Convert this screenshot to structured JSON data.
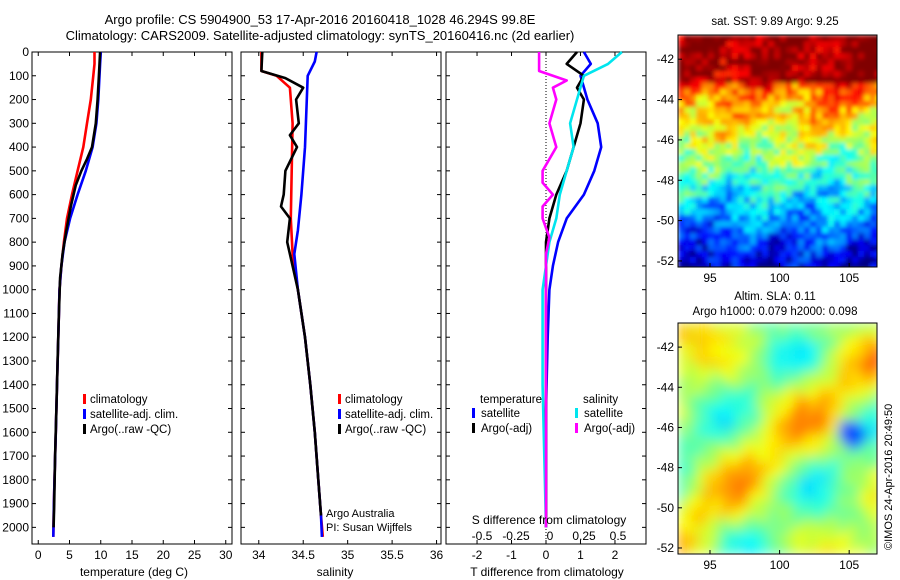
{
  "title_line1": "Argo profile: CS 5904900_53 17-Apr-2016 20160418_1028 46.294S 99.8E",
  "title_line2": "Climatology: CARS2009. Satellite-adjusted climatology: synTS_20160416.nc (2d earlier)",
  "sst_title": "sat. SST: 9.89 Argo: 9.25",
  "sla_title_line1": "Altim. SLA: 0.11",
  "sla_title_line2": "Argo h1000: 0.079 h2000: 0.098",
  "credit_side": "©IMOS 24-Apr-2016 20:49:50",
  "attribution_line1": "Argo Australia",
  "attribution_line2": "PI: Susan Wijffels",
  "colors": {
    "climatology": "#ff0000",
    "satellite": "#0000ff",
    "argo": "#000000",
    "sat_salinity": "#00e5ee",
    "argo_salinity": "#ff00ff"
  },
  "chart_data": [
    {
      "type": "line",
      "panel": "temperature",
      "xlabel": "temperature (deg C)",
      "xlim": [
        -1,
        31
      ],
      "ylim": [
        2070,
        0
      ],
      "xticks": [
        "0",
        "5",
        "10",
        "15",
        "20",
        "25",
        "30"
      ],
      "yticks": [
        "0",
        "100",
        "200",
        "300",
        "400",
        "500",
        "600",
        "700",
        "800",
        "900",
        "1000",
        "1100",
        "1200",
        "1300",
        "1400",
        "1500",
        "1600",
        "1700",
        "1800",
        "1900",
        "2000"
      ],
      "legend_position": "lower-center",
      "series": [
        {
          "name": "climatology",
          "color": "#ff0000",
          "points": [
            [
              9.0,
              0
            ],
            [
              9.0,
              50
            ],
            [
              8.8,
              100
            ],
            [
              8.4,
              200
            ],
            [
              7.8,
              300
            ],
            [
              7.2,
              400
            ],
            [
              6.3,
              500
            ],
            [
              5.4,
              600
            ],
            [
              4.6,
              700
            ],
            [
              4.1,
              800
            ],
            [
              3.7,
              900
            ],
            [
              3.4,
              1000
            ],
            [
              3.2,
              1200
            ],
            [
              3.0,
              1400
            ],
            [
              2.8,
              1600
            ],
            [
              2.6,
              1800
            ],
            [
              2.5,
              1900
            ],
            [
              2.4,
              2040
            ]
          ]
        },
        {
          "name": "satellite-adj. clim.",
          "color": "#0000ff",
          "points": [
            [
              10.0,
              0
            ],
            [
              9.9,
              50
            ],
            [
              9.8,
              100
            ],
            [
              9.6,
              200
            ],
            [
              9.3,
              300
            ],
            [
              8.7,
              400
            ],
            [
              7.6,
              500
            ],
            [
              6.3,
              600
            ],
            [
              5.1,
              700
            ],
            [
              4.2,
              800
            ],
            [
              3.7,
              900
            ],
            [
              3.4,
              1000
            ],
            [
              3.2,
              1200
            ],
            [
              3.0,
              1400
            ],
            [
              2.8,
              1600
            ],
            [
              2.6,
              1800
            ],
            [
              2.5,
              1900
            ],
            [
              2.4,
              2040
            ]
          ]
        },
        {
          "name": "Argo(..raw -QC)",
          "color": "#000000",
          "points": [
            [
              9.9,
              0
            ],
            [
              9.8,
              50
            ],
            [
              9.7,
              100
            ],
            [
              9.5,
              200
            ],
            [
              9.2,
              300
            ],
            [
              8.6,
              400
            ],
            [
              7.8,
              450
            ],
            [
              6.9,
              500
            ],
            [
              6.0,
              560
            ],
            [
              5.2,
              650
            ],
            [
              4.5,
              750
            ],
            [
              3.9,
              850
            ],
            [
              3.5,
              950
            ],
            [
              3.3,
              1100
            ],
            [
              3.1,
              1300
            ],
            [
              2.9,
              1500
            ],
            [
              2.7,
              1700
            ],
            [
              2.55,
              1900
            ],
            [
              2.45,
              2000
            ]
          ]
        }
      ]
    },
    {
      "type": "line",
      "panel": "salinity",
      "xlabel": "salinity",
      "xlim": [
        33.8,
        36.05
      ],
      "ylim": [
        2070,
        0
      ],
      "xticks": [
        "34",
        "34.5",
        "35",
        "35.5",
        "36"
      ],
      "legend_position": "lower-center",
      "series": [
        {
          "name": "climatology",
          "color": "#ff0000",
          "points": [
            [
              34.03,
              0
            ],
            [
              34.03,
              80
            ],
            [
              34.2,
              100
            ],
            [
              34.35,
              150
            ],
            [
              34.38,
              300
            ],
            [
              34.37,
              500
            ],
            [
              34.36,
              700
            ],
            [
              34.38,
              850
            ],
            [
              34.44,
              1000
            ],
            [
              34.52,
              1200
            ],
            [
              34.58,
              1400
            ],
            [
              34.63,
              1600
            ],
            [
              34.67,
              1800
            ],
            [
              34.7,
              1950
            ],
            [
              34.72,
              2040
            ]
          ]
        },
        {
          "name": "satellite-adj. clim.",
          "color": "#0000ff",
          "points": [
            [
              34.65,
              0
            ],
            [
              34.63,
              40
            ],
            [
              34.55,
              100
            ],
            [
              34.54,
              200
            ],
            [
              34.52,
              400
            ],
            [
              34.48,
              600
            ],
            [
              34.44,
              750
            ],
            [
              34.4,
              850
            ],
            [
              34.44,
              1000
            ],
            [
              34.52,
              1200
            ],
            [
              34.58,
              1400
            ],
            [
              34.63,
              1600
            ],
            [
              34.67,
              1800
            ],
            [
              34.7,
              1950
            ],
            [
              34.71,
              2040
            ]
          ]
        },
        {
          "name": "Argo(..raw -QC)",
          "color": "#000000",
          "points": [
            [
              34.04,
              0
            ],
            [
              34.03,
              80
            ],
            [
              34.3,
              110
            ],
            [
              34.5,
              150
            ],
            [
              34.42,
              200
            ],
            [
              34.45,
              300
            ],
            [
              34.35,
              350
            ],
            [
              34.43,
              400
            ],
            [
              34.3,
              500
            ],
            [
              34.28,
              600
            ],
            [
              34.25,
              650
            ],
            [
              34.35,
              700
            ],
            [
              34.32,
              800
            ],
            [
              34.38,
              900
            ],
            [
              34.44,
              1000
            ],
            [
              34.52,
              1200
            ],
            [
              34.58,
              1400
            ],
            [
              34.63,
              1600
            ],
            [
              34.67,
              1800
            ],
            [
              34.7,
              1950
            ]
          ]
        }
      ]
    },
    {
      "type": "line",
      "panel": "difference",
      "xlabel": "T difference from climatology",
      "x2label": "S difference from climatology",
      "xlim": [
        -2.9,
        2.9
      ],
      "ylim": [
        2070,
        0
      ],
      "xticks": [
        "-2",
        "-1",
        "0",
        "1",
        "2"
      ],
      "x2ticks": [
        "-0.5",
        "-0.25",
        "0",
        "0.25",
        "0.5"
      ],
      "legend_groups": [
        "temperature",
        "salinity"
      ],
      "legend_position": "lower-center",
      "series": [
        {
          "name": "satellite",
          "group": "temperature",
          "color": "#0000ff",
          "points": [
            [
              1.1,
              0
            ],
            [
              1.3,
              50
            ],
            [
              1.0,
              100
            ],
            [
              1.2,
              200
            ],
            [
              1.5,
              300
            ],
            [
              1.6,
              400
            ],
            [
              1.4,
              500
            ],
            [
              1.1,
              600
            ],
            [
              0.6,
              700
            ],
            [
              0.35,
              800
            ],
            [
              0.2,
              900
            ],
            [
              0.1,
              1000
            ],
            [
              0.05,
              1200
            ],
            [
              0.0,
              1500
            ],
            [
              0.0,
              1800
            ],
            [
              0.0,
              2000
            ]
          ]
        },
        {
          "name": "Argo(-adj)",
          "group": "temperature",
          "color": "#000000",
          "points": [
            [
              0.9,
              0
            ],
            [
              0.6,
              50
            ],
            [
              1.1,
              100
            ],
            [
              0.9,
              150
            ],
            [
              1.1,
              200
            ],
            [
              1.0,
              300
            ],
            [
              0.8,
              400
            ],
            [
              0.6,
              500
            ],
            [
              0.3,
              600
            ],
            [
              0.1,
              700
            ],
            [
              0.0,
              800
            ],
            [
              0.0,
              1000
            ],
            [
              0.0,
              1500
            ],
            [
              0.0,
              2000
            ]
          ]
        },
        {
          "name": "satellite",
          "group": "salinity",
          "color": "#00e5ee",
          "points": [
            [
              2.2,
              0
            ],
            [
              1.8,
              50
            ],
            [
              1.1,
              100
            ],
            [
              0.9,
              200
            ],
            [
              0.7,
              300
            ],
            [
              0.8,
              400
            ],
            [
              0.6,
              500
            ],
            [
              0.4,
              600
            ],
            [
              0.3,
              700
            ],
            [
              0.1,
              800
            ],
            [
              0.0,
              900
            ],
            [
              -0.1,
              1000
            ],
            [
              -0.1,
              1400
            ],
            [
              -0.05,
              1700
            ],
            [
              0.0,
              2000
            ]
          ]
        },
        {
          "name": "Argo(-adj)",
          "group": "salinity",
          "color": "#ff00ff",
          "points": [
            [
              -0.2,
              0
            ],
            [
              -0.2,
              80
            ],
            [
              0.6,
              120
            ],
            [
              0.2,
              150
            ],
            [
              0.3,
              200
            ],
            [
              0.1,
              300
            ],
            [
              0.3,
              400
            ],
            [
              -0.1,
              500
            ],
            [
              -0.1,
              550
            ],
            [
              0.2,
              600
            ],
            [
              -0.1,
              650
            ],
            [
              -0.1,
              700
            ],
            [
              0.1,
              780
            ],
            [
              0.0,
              850
            ],
            [
              0.0,
              1000
            ],
            [
              0.0,
              2000
            ]
          ]
        }
      ]
    },
    {
      "type": "heatmap",
      "panel": "sat-sst-map",
      "xlim": [
        92.7,
        107
      ],
      "ylim": [
        -52.3,
        -40.8
      ],
      "xticks": [
        "95",
        "100",
        "105"
      ],
      "yticks": [
        "-42",
        "-44",
        "-46",
        "-48",
        "-50",
        "-52"
      ]
    },
    {
      "type": "heatmap",
      "panel": "altim-sla-map",
      "xlim": [
        92.7,
        107
      ],
      "ylim": [
        -52.3,
        -40.8
      ],
      "xticks": [
        "95",
        "100",
        "105"
      ],
      "yticks": [
        "-42",
        "-44",
        "-46",
        "-48",
        "-50",
        "-52"
      ]
    }
  ]
}
